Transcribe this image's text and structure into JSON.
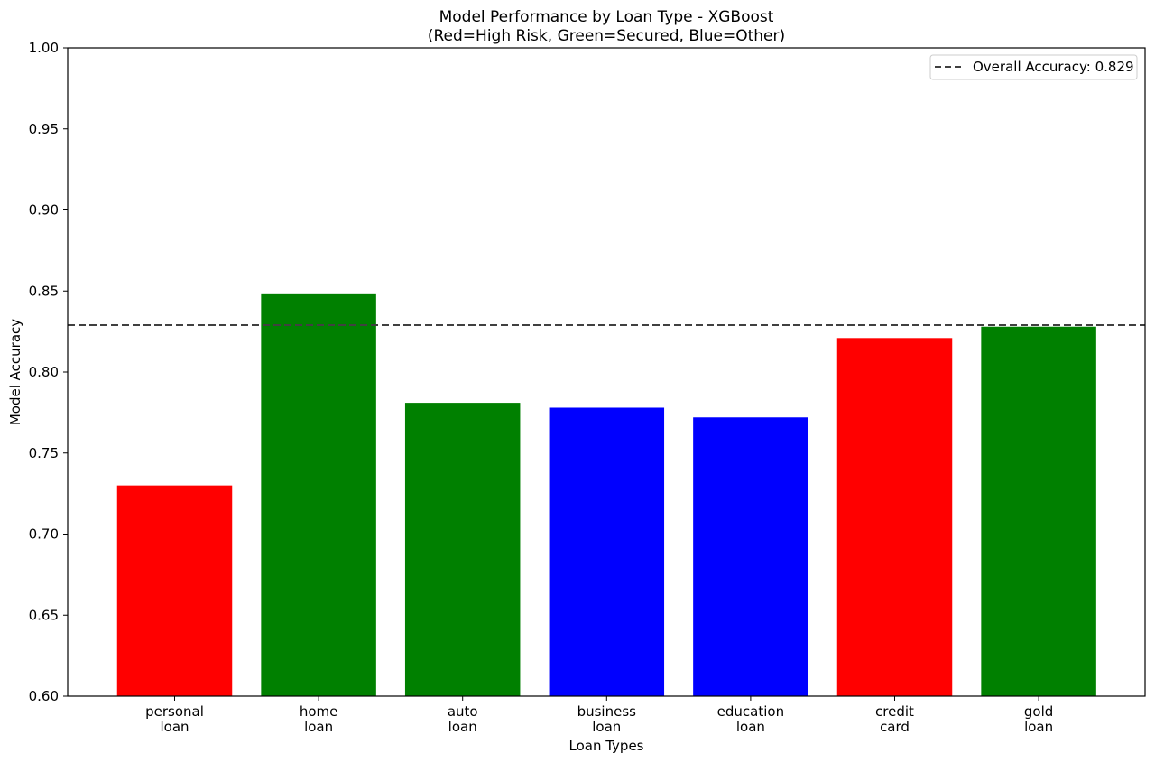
{
  "chart_data": {
    "type": "bar",
    "title": "Model Performance by Loan Type - XGBoost",
    "subtitle": "(Red=High Risk, Green=Secured, Blue=Other)",
    "xlabel": "Loan Types",
    "ylabel": "Model Accuracy",
    "ylim": [
      0.6,
      1.0
    ],
    "yticks": [
      "0.60",
      "0.65",
      "0.70",
      "0.75",
      "0.80",
      "0.85",
      "0.90",
      "0.95",
      "1.00"
    ],
    "categories": [
      [
        "personal",
        "loan"
      ],
      [
        "home",
        "loan"
      ],
      [
        "auto",
        "loan"
      ],
      [
        "business",
        "loan"
      ],
      [
        "education",
        "loan"
      ],
      [
        "credit",
        "card"
      ],
      [
        "gold",
        "loan"
      ]
    ],
    "values": [
      0.73,
      0.848,
      0.781,
      0.778,
      0.772,
      0.821,
      0.828
    ],
    "colors": [
      "#ff0000",
      "#008000",
      "#008000",
      "#0000ff",
      "#0000ff",
      "#ff0000",
      "#008000"
    ],
    "reference_line": {
      "value": 0.829,
      "label": "Overall Accuracy: 0.829",
      "color": "#404040",
      "style": "dashed"
    },
    "legend": {
      "placement": "top-right",
      "entries": [
        "Overall Accuracy: 0.829"
      ]
    },
    "grid": false
  }
}
